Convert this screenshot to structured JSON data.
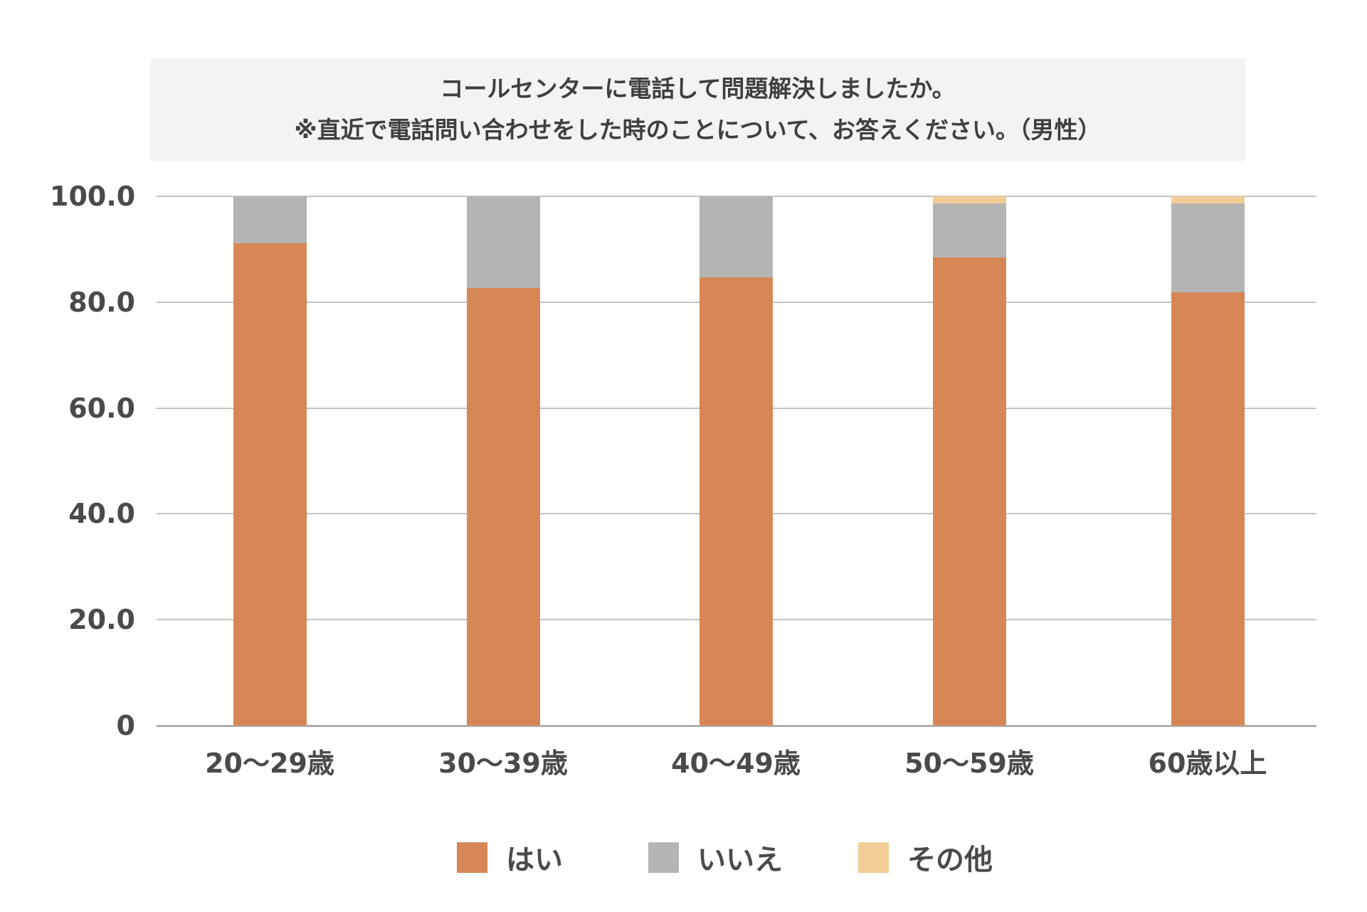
{
  "title": {
    "line1": "コールセンターに電話して問題解決しましたか。",
    "line2": "※直近で電話問い合わせをした時のことについて、お答えください。（男性）"
  },
  "colors": {
    "hai": "#d68755",
    "iie": "#b4b4b4",
    "other": "#f4cd96"
  },
  "y_ticks": [
    "100.0",
    "80.0",
    "60.0",
    "40.0",
    "20.0",
    "0"
  ],
  "legend": {
    "hai": "はい",
    "iie": "いいえ",
    "other": "その他"
  },
  "chart_data": {
    "type": "bar",
    "stacked": true,
    "title": "コールセンターに電話して問題解決しましたか。※直近で電話問い合わせをした時のことについて、お答えください。（男性）",
    "xlabel": "",
    "ylabel": "",
    "ylim": [
      0,
      100
    ],
    "y_ticks": [
      0,
      20,
      40,
      60,
      80,
      100
    ],
    "grid": true,
    "legend_position": "bottom",
    "categories": [
      "20〜29歳",
      "30〜39歳",
      "40〜49歳",
      "50〜59歳",
      "60歳以上"
    ],
    "series": [
      {
        "name": "はい",
        "color": "#d68755",
        "values": [
          91.1,
          82.6,
          84.7,
          88.5,
          81.9
        ]
      },
      {
        "name": "いいえ",
        "color": "#b4b4b4",
        "values": [
          8.9,
          17.4,
          15.3,
          10.2,
          16.8
        ]
      },
      {
        "name": "その他",
        "color": "#f4cd96",
        "values": [
          0.0,
          0.0,
          0.0,
          1.3,
          1.3
        ]
      }
    ]
  }
}
